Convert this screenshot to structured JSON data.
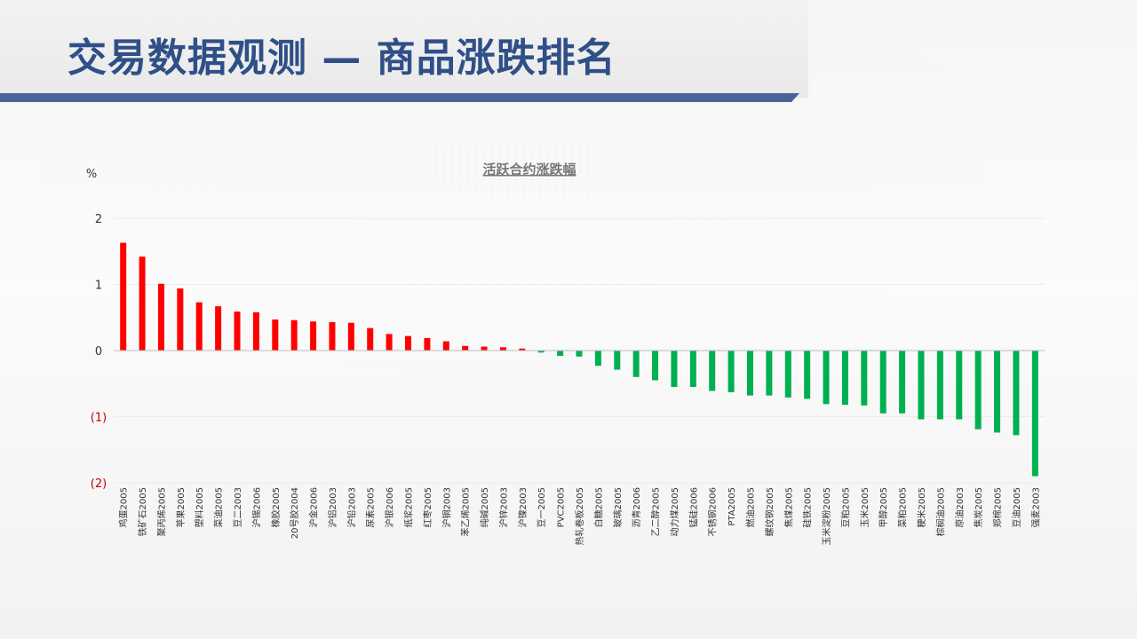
{
  "page": {
    "title": "交易数据观测 — 商品涨跌排名"
  },
  "colors": {
    "up": "#ff0000",
    "down": "#00b050",
    "title": "#2f4f87",
    "negative_tick": "#c00000"
  },
  "chart_data": {
    "type": "bar",
    "title": "活跃合约涨跌幅",
    "ylabel": "%",
    "ylim": [
      -2,
      2
    ],
    "yticks": [
      {
        "value": 2,
        "label": "2"
      },
      {
        "value": 1,
        "label": "1"
      },
      {
        "value": 0,
        "label": "0"
      },
      {
        "value": -1,
        "label": "(1)"
      },
      {
        "value": -2,
        "label": "(2)"
      }
    ],
    "grid": false,
    "legend": "none",
    "categories": [
      "鸡蛋2005",
      "铁矿石2005",
      "聚丙烯2005",
      "苹果2005",
      "塑料2005",
      "菜油2005",
      "豆二2003",
      "沪锡2006",
      "橡胶2005",
      "20号胶2004",
      "沪金2006",
      "沪铝2003",
      "沪铅2003",
      "尿素2005",
      "沪银2006",
      "纸浆2005",
      "红枣2005",
      "沪铜2003",
      "苯乙烯2005",
      "纯碱2005",
      "沪锌2003",
      "沪镍2003",
      "豆一2005",
      "PVC2005",
      "热轧卷板2005",
      "白糖2005",
      "玻璃2005",
      "沥青2006",
      "乙二醇2005",
      "动力煤2005",
      "锰硅2006",
      "不锈钢2006",
      "PTA2005",
      "燃油2005",
      "螺纹钢2005",
      "焦煤2005",
      "硅铁2005",
      "玉米淀粉2005",
      "豆粕2005",
      "玉米2005",
      "甲醇2005",
      "菜粕2005",
      "粳米2005",
      "棕榈油2005",
      "原油2003",
      "焦炭2005",
      "郑棉2005",
      "豆油2005",
      "强麦2003"
    ],
    "values": [
      1.63,
      1.42,
      1.01,
      0.94,
      0.73,
      0.67,
      0.59,
      0.58,
      0.47,
      0.46,
      0.44,
      0.43,
      0.42,
      0.34,
      0.25,
      0.22,
      0.19,
      0.14,
      0.07,
      0.06,
      0.05,
      0.03,
      -0.03,
      -0.08,
      -0.09,
      -0.23,
      -0.29,
      -0.4,
      -0.45,
      -0.55,
      -0.55,
      -0.61,
      -0.63,
      -0.68,
      -0.68,
      -0.71,
      -0.73,
      -0.81,
      -0.82,
      -0.83,
      -0.95,
      -0.95,
      -1.04,
      -1.04,
      -1.04,
      -1.19,
      -1.24,
      -1.28,
      -1.9
    ]
  }
}
